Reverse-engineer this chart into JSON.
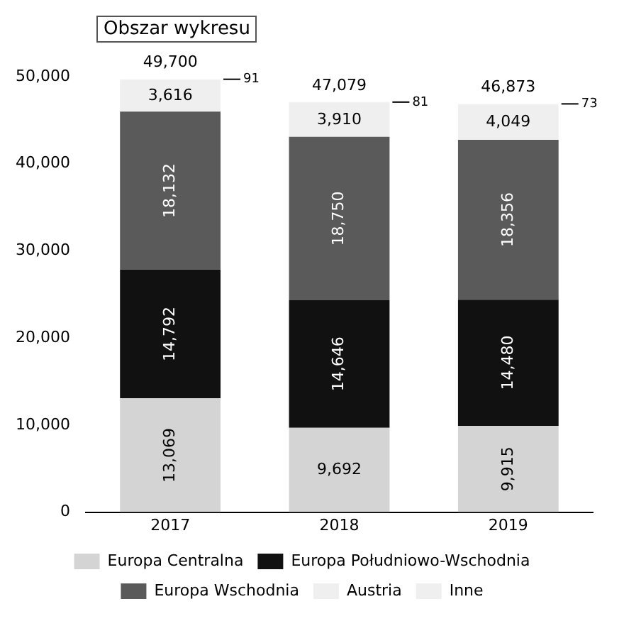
{
  "chart_data": {
    "type": "bar",
    "stacked": true,
    "categories": [
      "2017",
      "2018",
      "2019"
    ],
    "series": [
      {
        "name": "Europa Centralna",
        "color": "#d4d4d4",
        "values": [
          13069,
          9692,
          9915
        ],
        "value_labels": [
          "13,069",
          "9,692",
          "9,915"
        ]
      },
      {
        "name": "Europa Południowo-Wschodnia",
        "color": "#111111",
        "values": [
          14792,
          14646,
          14480
        ],
        "value_labels": [
          "14,792",
          "14,646",
          "14,480"
        ]
      },
      {
        "name": "Europa Wschodnia",
        "color": "#5a5a5a",
        "values": [
          18132,
          18750,
          18356
        ],
        "value_labels": [
          "18,132",
          "18,750",
          "18,356"
        ]
      },
      {
        "name": "Austria",
        "color": "#efefef",
        "values": [
          3616,
          3910,
          4049
        ],
        "value_labels": [
          "3,616",
          "3,910",
          "4,049"
        ]
      },
      {
        "name": "Inne",
        "color": "#efefef",
        "values": [
          91,
          81,
          73
        ],
        "value_labels": [
          "91",
          "81",
          "73"
        ]
      }
    ],
    "totals": [
      "49,700",
      "47,079",
      "46,873"
    ],
    "ylim": [
      0,
      50000
    ],
    "yticks": [
      0,
      {
        "value": 10000,
        "label": "10,000"
      },
      {
        "value": 20000,
        "label": "20,000"
      },
      {
        "value": 30000,
        "label": "30,000"
      },
      {
        "value": 40000,
        "label": "40,000"
      },
      {
        "value": 50000,
        "label": "50,000"
      }
    ],
    "grid": false,
    "legend": "bottom",
    "annotations": [
      "Obszar wykresu"
    ]
  }
}
